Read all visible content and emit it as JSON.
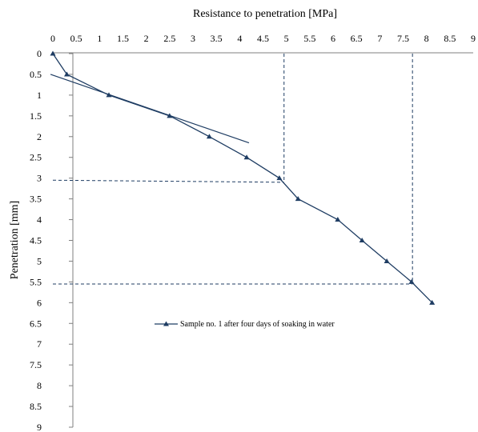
{
  "chart_data": {
    "type": "line",
    "title": "",
    "xlabel": "Resistance to penetration [MPa]",
    "ylabel": "Penetration [mm]",
    "x_axis_position": "top",
    "y_axis_inverted": true,
    "xlim": [
      0,
      9
    ],
    "ylim": [
      0,
      9
    ],
    "xticks": [
      "0",
      "0.5",
      "1",
      "1.5",
      "2",
      "2.5",
      "3",
      "3.5",
      "4",
      "4.5",
      "5",
      "5.5",
      "6",
      "6.5",
      "7",
      "7.5",
      "8",
      "8.5",
      "9"
    ],
    "yticks": [
      "0",
      "0.5",
      "1",
      "1.5",
      "2",
      "2.5",
      "3",
      "3.5",
      "4",
      "4.5",
      "5",
      "5.5",
      "6",
      "6.5",
      "7",
      "7.5",
      "8",
      "8.5",
      "9"
    ],
    "grid": false,
    "legend_position": "middle",
    "series": [
      {
        "name": "Sample no. 1 after four days of soaking in water",
        "color": "#1f3d63",
        "marker": "triangle",
        "x": [
          0,
          0.3,
          1.2,
          2.5,
          3.35,
          4.15,
          4.85,
          5.25,
          6.1,
          6.62,
          7.15,
          7.68,
          8.12
        ],
        "y": [
          0,
          0.5,
          1.0,
          1.5,
          2.0,
          2.5,
          3.0,
          3.5,
          4.0,
          4.5,
          5.0,
          5.5,
          6.0
        ]
      }
    ],
    "annotations": {
      "tangent_line": {
        "color": "#1f3d63",
        "x": [
          -0.05,
          4.2
        ],
        "y": [
          0.5,
          2.15
        ]
      },
      "dashed_guides": [
        {
          "color": "#1f3d63",
          "x": [
            4.95,
            4.95
          ],
          "y": [
            0,
            3.1
          ]
        },
        {
          "color": "#1f3d63",
          "x": [
            0,
            4.95
          ],
          "y": [
            3.05,
            3.1
          ]
        },
        {
          "color": "#1f3d63",
          "x": [
            7.7,
            7.7
          ],
          "y": [
            0,
            5.5
          ]
        },
        {
          "color": "#1f3d63",
          "x": [
            0,
            7.7
          ],
          "y": [
            5.55,
            5.55
          ]
        }
      ]
    }
  }
}
